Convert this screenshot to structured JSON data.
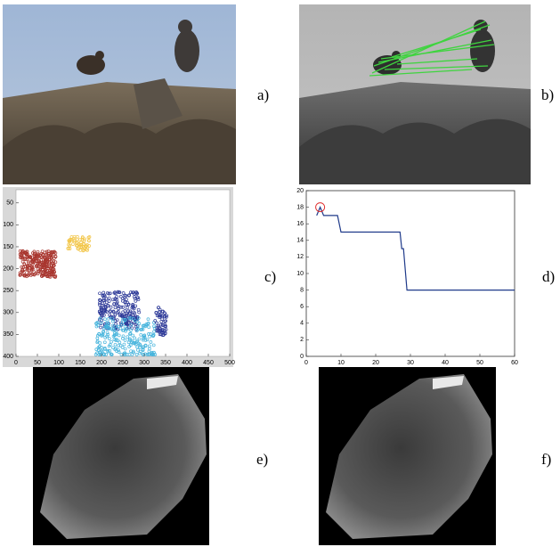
{
  "panels": [
    {
      "label": "a)"
    },
    {
      "label": "b)"
    },
    {
      "label": "c)"
    },
    {
      "label": "d)"
    },
    {
      "label": "e)"
    },
    {
      "label": "f)"
    }
  ],
  "chart_data": [
    {
      "type": "scatter",
      "colors": [
        "#a8352e",
        "#f2c64a",
        "#2e3a98",
        "#46b4dc"
      ],
      "xlim": [
        0,
        500
      ],
      "ylim": [
        20,
        400
      ],
      "y_inverted": true,
      "xticks": [
        0,
        50,
        100,
        150,
        200,
        250,
        300,
        350,
        400,
        450,
        500
      ],
      "yticks": [
        50,
        100,
        150,
        200,
        250,
        300,
        350,
        400
      ]
    },
    {
      "type": "line",
      "xlim": [
        0,
        60
      ],
      "ylim": [
        0,
        20
      ],
      "xticks": [
        0,
        10,
        20,
        30,
        40,
        50,
        60
      ],
      "yticks": [
        0,
        2,
        4,
        6,
        8,
        10,
        12,
        14,
        16,
        18,
        20
      ],
      "series": [
        {
          "color": "#1f3a8a",
          "x": [
            3,
            4,
            5,
            9,
            10,
            27,
            27.5,
            28,
            29,
            60
          ],
          "y": [
            17,
            18,
            17,
            17,
            15,
            15,
            13,
            13,
            8,
            8
          ]
        }
      ],
      "highlight": {
        "x": 4,
        "y": 18,
        "color": "#e03030"
      }
    }
  ]
}
